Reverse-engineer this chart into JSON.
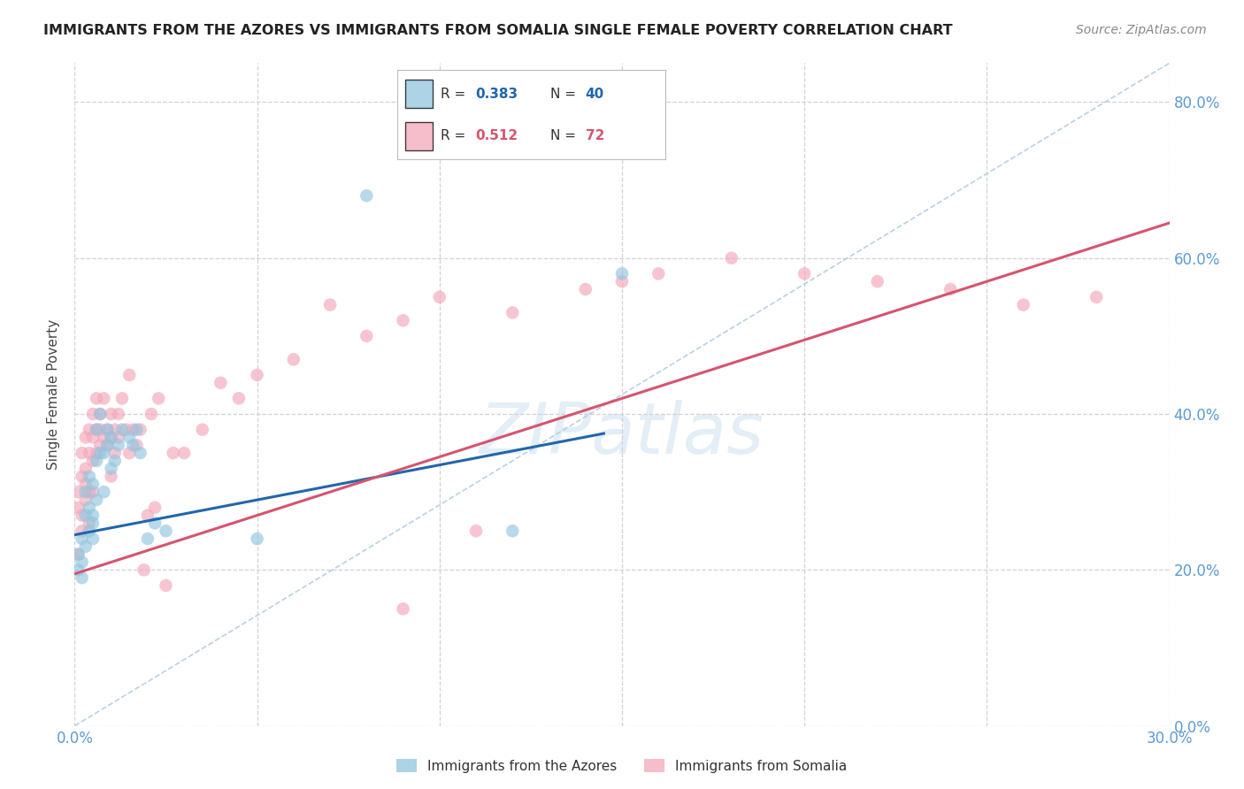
{
  "title": "IMMIGRANTS FROM THE AZORES VS IMMIGRANTS FROM SOMALIA SINGLE FEMALE POVERTY CORRELATION CHART",
  "source": "Source: ZipAtlas.com",
  "ylabel": "Single Female Poverty",
  "legend_label1": "Immigrants from the Azores",
  "legend_label2": "Immigrants from Somalia",
  "r1": 0.383,
  "n1": 40,
  "r2": 0.512,
  "n2": 72,
  "color1": "#92c5de",
  "color2": "#f4a7b9",
  "line_color1": "#2166ac",
  "line_color2": "#d6546e",
  "xlim": [
    0.0,
    0.3
  ],
  "ylim": [
    0.0,
    0.85
  ],
  "yticks": [
    0.0,
    0.2,
    0.4,
    0.6,
    0.8
  ],
  "xticks": [
    0.0,
    0.05,
    0.1,
    0.15,
    0.2,
    0.25,
    0.3
  ],
  "xtick_labels_show": [
    "0.0%",
    "30.0%"
  ],
  "xtick_show_positions": [
    0.0,
    0.3
  ],
  "ytick_labels": [
    "0.0%",
    "20.0%",
    "40.0%",
    "60.0%",
    "80.0%"
  ],
  "watermark": "ZIPatlas",
  "tick_color": "#5b9bd5",
  "grid_color": "#d0d0d8",
  "diag_color": "#b0c8e0",
  "azores_x": [
    0.001,
    0.001,
    0.002,
    0.002,
    0.002,
    0.003,
    0.003,
    0.003,
    0.004,
    0.004,
    0.004,
    0.005,
    0.005,
    0.005,
    0.005,
    0.006,
    0.006,
    0.006,
    0.007,
    0.007,
    0.008,
    0.008,
    0.009,
    0.009,
    0.01,
    0.01,
    0.011,
    0.012,
    0.013,
    0.015,
    0.016,
    0.017,
    0.018,
    0.02,
    0.022,
    0.025,
    0.05,
    0.08,
    0.12,
    0.15
  ],
  "azores_y": [
    0.2,
    0.22,
    0.24,
    0.19,
    0.21,
    0.27,
    0.3,
    0.23,
    0.28,
    0.25,
    0.32,
    0.27,
    0.31,
    0.24,
    0.26,
    0.34,
    0.29,
    0.38,
    0.35,
    0.4,
    0.3,
    0.35,
    0.36,
    0.38,
    0.33,
    0.37,
    0.34,
    0.36,
    0.38,
    0.37,
    0.36,
    0.38,
    0.35,
    0.24,
    0.26,
    0.25,
    0.24,
    0.68,
    0.25,
    0.58
  ],
  "somalia_x": [
    0.001,
    0.001,
    0.001,
    0.002,
    0.002,
    0.002,
    0.002,
    0.003,
    0.003,
    0.003,
    0.003,
    0.004,
    0.004,
    0.004,
    0.004,
    0.005,
    0.005,
    0.005,
    0.005,
    0.006,
    0.006,
    0.006,
    0.007,
    0.007,
    0.007,
    0.008,
    0.008,
    0.009,
    0.009,
    0.01,
    0.01,
    0.01,
    0.011,
    0.011,
    0.012,
    0.012,
    0.013,
    0.014,
    0.015,
    0.015,
    0.016,
    0.017,
    0.018,
    0.019,
    0.02,
    0.021,
    0.022,
    0.023,
    0.025,
    0.027,
    0.03,
    0.035,
    0.04,
    0.045,
    0.05,
    0.06,
    0.07,
    0.08,
    0.09,
    0.1,
    0.12,
    0.14,
    0.15,
    0.16,
    0.18,
    0.2,
    0.22,
    0.24,
    0.26,
    0.28,
    0.09,
    0.11
  ],
  "somalia_y": [
    0.22,
    0.28,
    0.3,
    0.25,
    0.32,
    0.27,
    0.35,
    0.29,
    0.33,
    0.31,
    0.37,
    0.3,
    0.35,
    0.38,
    0.26,
    0.34,
    0.37,
    0.3,
    0.4,
    0.35,
    0.38,
    0.42,
    0.36,
    0.4,
    0.38,
    0.37,
    0.42,
    0.36,
    0.38,
    0.32,
    0.37,
    0.4,
    0.38,
    0.35,
    0.4,
    0.37,
    0.42,
    0.38,
    0.35,
    0.45,
    0.38,
    0.36,
    0.38,
    0.2,
    0.27,
    0.4,
    0.28,
    0.42,
    0.18,
    0.35,
    0.35,
    0.38,
    0.44,
    0.42,
    0.45,
    0.47,
    0.54,
    0.5,
    0.52,
    0.55,
    0.53,
    0.56,
    0.57,
    0.58,
    0.6,
    0.58,
    0.57,
    0.56,
    0.54,
    0.55,
    0.15,
    0.25
  ],
  "blue_line_x": [
    0.0,
    0.145
  ],
  "blue_line_y": [
    0.245,
    0.375
  ],
  "pink_line_x": [
    0.0,
    0.3
  ],
  "pink_line_y": [
    0.195,
    0.645
  ]
}
